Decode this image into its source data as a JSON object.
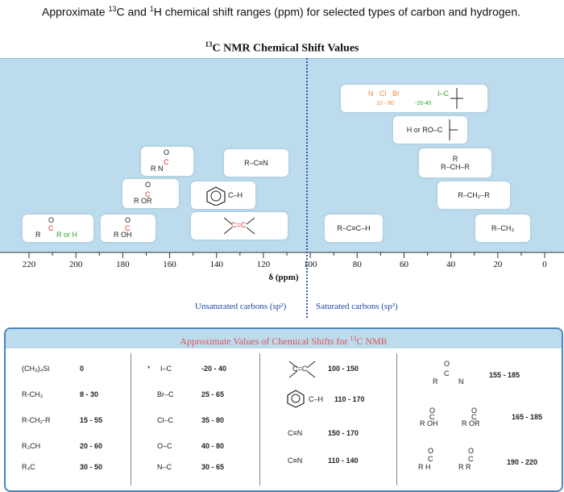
{
  "intro": {
    "text_a": "Approximate ",
    "sup_c": "13",
    "text_b": "C and ",
    "sup_h": "1",
    "text_c": "H chemical shift ranges (ppm) for selected types of carbon and hydrogen."
  },
  "diagram_title": {
    "sup": "13",
    "text": "C NMR Chemical Shift Values"
  },
  "boxes": {
    "halide_atoms": [
      "N",
      "Cl",
      "Br"
    ],
    "halide_range": "10 - 90",
    "iodo_label": "I–C",
    "iodo_range": "-20-40",
    "ether_label": "H or RO–C",
    "ch_label": "R–CH–R",
    "ch_top": "R",
    "ch2_label": "R–CH₂–R",
    "ch3_label": "R–CH₃",
    "alkyne_label": "R–C≡C–H",
    "nitrile_label": "R–C≡N",
    "phenyl_label": "C–H",
    "alkene_label": "C=C",
    "amide_label": "R N",
    "ester_label": "R OR",
    "acid_label": "R OH",
    "aldehyde_label_r": "R",
    "aldehyde_label_h": "R or H",
    "carbonyl_o": "O",
    "carbonyl_c": "C"
  },
  "axis": {
    "ticks": [
      "220",
      "200",
      "180",
      "160",
      "140",
      "120",
      "100",
      "80",
      "60",
      "40",
      "20",
      "0"
    ],
    "label": "δ (ppm)"
  },
  "regions": {
    "left": "Unsaturated carbons (sp²)",
    "right": "Saturated carbons (sp³)"
  },
  "table": {
    "title_a": "Approximate Values of Chemical Shifts for ",
    "title_sup": "13",
    "title_b": "C NMR",
    "col1": [
      {
        "label": "(CH₃)₄Si",
        "value": "0"
      },
      {
        "label": "R-CH₃",
        "value": "8 - 30"
      },
      {
        "label": "R-CH₂-R",
        "value": "15 - 55"
      },
      {
        "label": "R₃CH",
        "value": "20 - 60"
      },
      {
        "label": "R₄C",
        "value": "30 - 50"
      }
    ],
    "col2": [
      {
        "label": "I–C",
        "value": "-20 - 40",
        "star": "*"
      },
      {
        "label": "Br–C",
        "value": "25 - 65"
      },
      {
        "label": "Cl–C",
        "value": "35 - 80"
      },
      {
        "label": "O–C",
        "value": "40 - 80"
      },
      {
        "label": "N–C",
        "value": "30 - 65"
      }
    ],
    "col3": [
      {
        "label": "C=C",
        "value": "100 - 150"
      },
      {
        "label": "C–H",
        "value": "110 - 170"
      },
      {
        "label": "C≡N",
        "value": "150 - 170"
      },
      {
        "label": "C≡N",
        "value": "110 - 140"
      }
    ],
    "col4": [
      {
        "label_a": "R",
        "label_b": "N",
        "value": "155 - 185"
      },
      {
        "label_a": "R OH",
        "label_b": "R OR",
        "value": "165 - 185"
      },
      {
        "label_a": "R H",
        "label_b": "R R",
        "value": "190 - 220"
      }
    ],
    "carbonyl_o": "O",
    "carbonyl_c": "C"
  },
  "colors": {
    "panel": "#bcdcee",
    "accent_red": "#e03535",
    "accent_green": "#2aa52a",
    "divider": "#3355bb"
  }
}
